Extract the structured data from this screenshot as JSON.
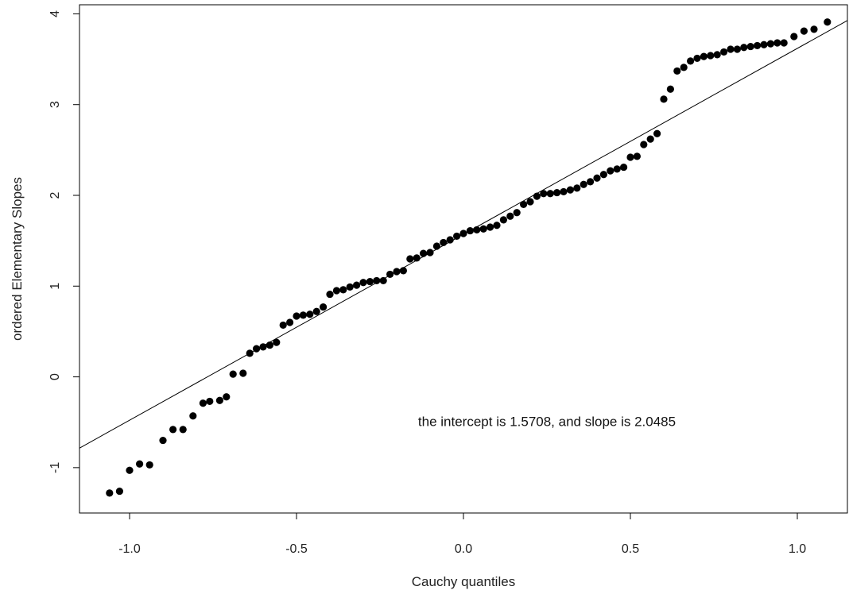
{
  "chart_data": {
    "type": "scatter",
    "title": "",
    "xlabel": "Cauchy quantiles",
    "ylabel": "ordered Elementary Slopes",
    "xlim": [
      -1.15,
      1.15
    ],
    "ylim": [
      -1.5,
      4.1
    ],
    "x_ticks": [
      -1.0,
      -0.5,
      0.0,
      0.5,
      1.0
    ],
    "x_tick_labels": [
      "-1.0",
      "-0.5",
      "0.0",
      "0.5",
      "1.0"
    ],
    "y_ticks": [
      -1,
      0,
      1,
      2,
      3,
      4
    ],
    "y_tick_labels": [
      "-1",
      "0",
      "1",
      "2",
      "3",
      "4"
    ],
    "grid": false,
    "legend": "none",
    "colors": {
      "points": "#000000",
      "line": "#000000"
    },
    "reference_line": {
      "intercept": 1.5708,
      "slope": 2.0485
    },
    "annotation": {
      "text": "the intercept is 1.5708, and slope is 2.0485",
      "x": 0.25,
      "y": -0.54
    },
    "points": [
      [
        -1.06,
        -1.28
      ],
      [
        -1.03,
        -1.26
      ],
      [
        -1.0,
        -1.03
      ],
      [
        -0.97,
        -0.96
      ],
      [
        -0.94,
        -0.97
      ],
      [
        -0.9,
        -0.7
      ],
      [
        -0.87,
        -0.58
      ],
      [
        -0.84,
        -0.58
      ],
      [
        -0.81,
        -0.43
      ],
      [
        -0.78,
        -0.29
      ],
      [
        -0.76,
        -0.27
      ],
      [
        -0.73,
        -0.26
      ],
      [
        -0.71,
        -0.22
      ],
      [
        -0.69,
        0.03
      ],
      [
        -0.66,
        0.04
      ],
      [
        -0.64,
        0.26
      ],
      [
        -0.62,
        0.31
      ],
      [
        -0.6,
        0.33
      ],
      [
        -0.58,
        0.35
      ],
      [
        -0.56,
        0.38
      ],
      [
        -0.54,
        0.57
      ],
      [
        -0.52,
        0.6
      ],
      [
        -0.5,
        0.67
      ],
      [
        -0.48,
        0.68
      ],
      [
        -0.46,
        0.69
      ],
      [
        -0.44,
        0.72
      ],
      [
        -0.42,
        0.77
      ],
      [
        -0.4,
        0.91
      ],
      [
        -0.38,
        0.95
      ],
      [
        -0.36,
        0.96
      ],
      [
        -0.34,
        0.99
      ],
      [
        -0.32,
        1.01
      ],
      [
        -0.3,
        1.04
      ],
      [
        -0.28,
        1.05
      ],
      [
        -0.26,
        1.06
      ],
      [
        -0.24,
        1.06
      ],
      [
        -0.22,
        1.13
      ],
      [
        -0.2,
        1.16
      ],
      [
        -0.18,
        1.17
      ],
      [
        -0.16,
        1.3
      ],
      [
        -0.14,
        1.31
      ],
      [
        -0.12,
        1.36
      ],
      [
        -0.1,
        1.37
      ],
      [
        -0.08,
        1.44
      ],
      [
        -0.06,
        1.48
      ],
      [
        -0.04,
        1.51
      ],
      [
        -0.02,
        1.55
      ],
      [
        0.0,
        1.58
      ],
      [
        0.02,
        1.61
      ],
      [
        0.04,
        1.62
      ],
      [
        0.06,
        1.63
      ],
      [
        0.08,
        1.65
      ],
      [
        0.1,
        1.67
      ],
      [
        0.12,
        1.73
      ],
      [
        0.14,
        1.77
      ],
      [
        0.16,
        1.81
      ],
      [
        0.18,
        1.9
      ],
      [
        0.2,
        1.93
      ],
      [
        0.22,
        1.99
      ],
      [
        0.24,
        2.02
      ],
      [
        0.26,
        2.02
      ],
      [
        0.28,
        2.03
      ],
      [
        0.3,
        2.04
      ],
      [
        0.32,
        2.06
      ],
      [
        0.34,
        2.08
      ],
      [
        0.36,
        2.12
      ],
      [
        0.38,
        2.15
      ],
      [
        0.4,
        2.19
      ],
      [
        0.42,
        2.23
      ],
      [
        0.44,
        2.27
      ],
      [
        0.46,
        2.29
      ],
      [
        0.48,
        2.31
      ],
      [
        0.5,
        2.42
      ],
      [
        0.52,
        2.43
      ],
      [
        0.54,
        2.56
      ],
      [
        0.56,
        2.62
      ],
      [
        0.58,
        2.68
      ],
      [
        0.6,
        3.06
      ],
      [
        0.62,
        3.17
      ],
      [
        0.64,
        3.37
      ],
      [
        0.66,
        3.41
      ],
      [
        0.68,
        3.48
      ],
      [
        0.7,
        3.51
      ],
      [
        0.72,
        3.53
      ],
      [
        0.74,
        3.54
      ],
      [
        0.76,
        3.55
      ],
      [
        0.78,
        3.58
      ],
      [
        0.8,
        3.61
      ],
      [
        0.82,
        3.61
      ],
      [
        0.84,
        3.63
      ],
      [
        0.86,
        3.64
      ],
      [
        0.88,
        3.65
      ],
      [
        0.9,
        3.66
      ],
      [
        0.92,
        3.67
      ],
      [
        0.94,
        3.68
      ],
      [
        0.96,
        3.68
      ],
      [
        0.99,
        3.75
      ],
      [
        1.02,
        3.81
      ],
      [
        1.05,
        3.83
      ],
      [
        1.09,
        3.91
      ]
    ]
  }
}
